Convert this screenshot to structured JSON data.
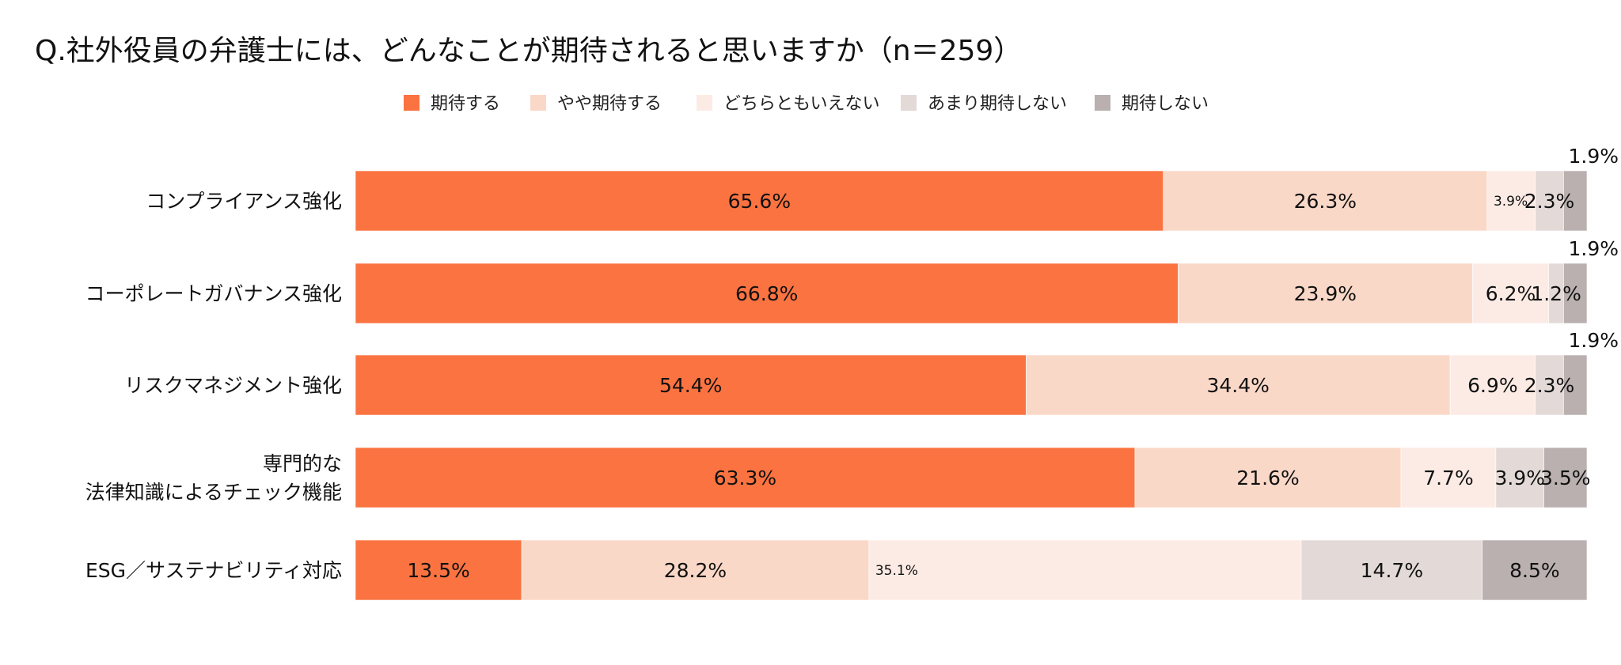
{
  "chart_data": {
    "type": "bar",
    "orientation": "horizontal",
    "stacked": true,
    "normalized": true,
    "title": "Q.社外役員の弁護士には、どんなことが期待されると思いますか（n＝259）",
    "categories": [
      [
        "コンプライアンス強化"
      ],
      [
        "コーポレートガバナンス強化"
      ],
      [
        "リスクマネジメント強化"
      ],
      [
        "専門的な",
        "法律知識によるチェック機能"
      ],
      [
        "ESG／サステナビリティ対応"
      ]
    ],
    "series": [
      {
        "name": "期待する",
        "color": "#fb7341",
        "values": [
          65.6,
          66.8,
          54.4,
          63.3,
          13.5
        ]
      },
      {
        "name": "やや期待する",
        "color": "#fad8c7",
        "values": [
          26.3,
          23.9,
          34.4,
          21.6,
          28.2
        ]
      },
      {
        "name": "どちらともいえない",
        "color": "#fcebe5",
        "values": [
          3.9,
          6.2,
          6.9,
          7.7,
          35.1
        ]
      },
      {
        "name": "あまり期待しない",
        "color": "#e3dad8",
        "values": [
          2.3,
          1.2,
          2.3,
          3.9,
          14.7
        ]
      },
      {
        "name": "期待しない",
        "color": "#bab0b0",
        "values": [
          1.9,
          1.9,
          1.9,
          3.5,
          8.5
        ]
      }
    ],
    "value_format": "{v}%",
    "legend_position": "top",
    "grid": false
  }
}
